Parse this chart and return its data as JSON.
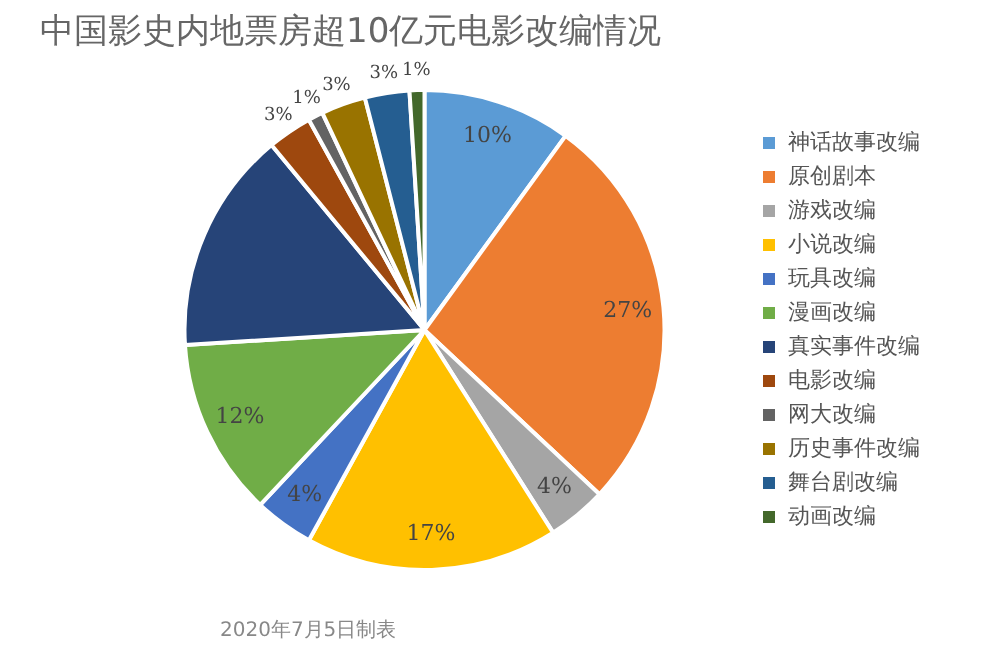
{
  "chart_data": {
    "type": "pie",
    "title": "中国影史内地票房超10亿元电影改编情况",
    "categories": [
      "神话故事改编",
      "原创剧本",
      "游戏改编",
      "小说改编",
      "玩具改编",
      "漫画改编",
      "真实事件改编",
      "电影改编",
      "网大改编",
      "历史事件改编",
      "舞台剧改编",
      "动画改编"
    ],
    "values": [
      10,
      27,
      4,
      17,
      4,
      12,
      15,
      3,
      1,
      3,
      3,
      1
    ],
    "colors": [
      "#5b9bd5",
      "#ed7d31",
      "#a5a5a5",
      "#ffc000",
      "#4472c4",
      "#70ad47",
      "#264478",
      "#9e480e",
      "#636363",
      "#997300",
      "#255e91",
      "#43682b"
    ],
    "value_labels": [
      "10%",
      "27%",
      "4%",
      "17%",
      "4%",
      "12%",
      null,
      "3%",
      "1%",
      "3%",
      "3%",
      "1%"
    ],
    "legend": "right",
    "annotations": [
      "2020年7月5日制表"
    ]
  }
}
